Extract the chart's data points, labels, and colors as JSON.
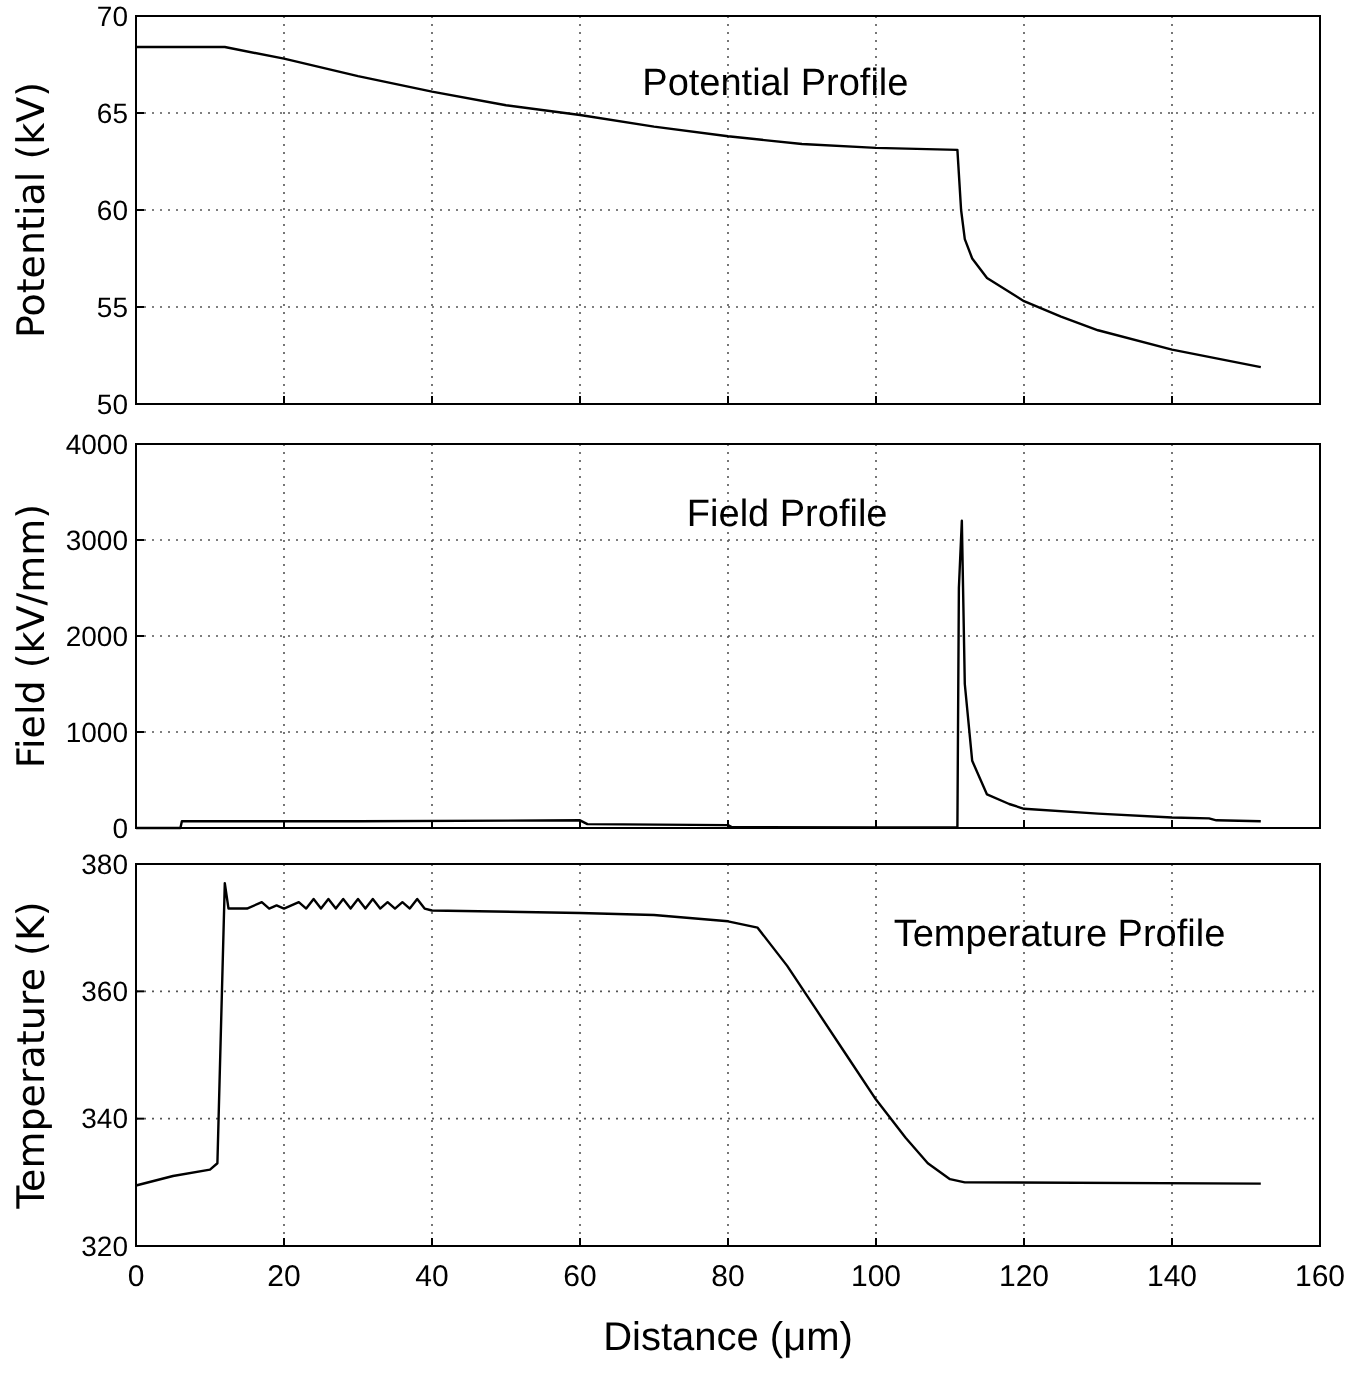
{
  "chart_data": [
    {
      "type": "line",
      "title": "Potential Profile",
      "ylabel": "Potential (kV)",
      "xlim": [
        0,
        160
      ],
      "xticks": [
        0,
        20,
        40,
        60,
        80,
        100,
        120,
        140,
        160
      ],
      "ylim": [
        50,
        70
      ],
      "yticks": [
        50,
        55,
        60,
        65,
        70
      ],
      "grid": true,
      "tick_labels": "y",
      "series": [
        {
          "color": "#000000",
          "x": [
            0,
            12,
            20,
            30,
            40,
            50,
            60,
            70,
            80,
            90,
            100,
            111,
            111.5,
            112,
            113,
            115,
            120,
            125,
            130,
            140,
            152
          ],
          "values": [
            68.4,
            68.4,
            67.8,
            66.9,
            66.1,
            65.4,
            64.9,
            64.3,
            63.8,
            63.4,
            63.2,
            63.1,
            60,
            58.5,
            57.5,
            56.5,
            55.3,
            54.5,
            53.8,
            52.8,
            51.9
          ]
        }
      ]
    },
    {
      "type": "line",
      "title": "Field Profile",
      "ylabel": "Field (kV/mm)",
      "xlim": [
        0,
        160
      ],
      "xticks": [
        0,
        20,
        40,
        60,
        80,
        100,
        120,
        140,
        160
      ],
      "ylim": [
        0,
        4000
      ],
      "yticks": [
        0,
        1000,
        2000,
        3000,
        4000
      ],
      "grid": true,
      "tick_labels": "y",
      "series": [
        {
          "color": "#000000",
          "x": [
            0,
            6,
            6.2,
            30,
            60,
            61,
            80,
            80.5,
            100,
            111,
            111.2,
            111.6,
            112,
            113,
            115,
            118,
            120,
            130,
            140,
            145,
            146,
            152
          ],
          "values": [
            0,
            0,
            70,
            70,
            80,
            40,
            30,
            10,
            5,
            5,
            2500,
            3200,
            1500,
            700,
            350,
            250,
            200,
            150,
            110,
            100,
            80,
            70
          ]
        }
      ]
    },
    {
      "type": "line",
      "title": "Temperature Profile",
      "ylabel": "Temperature (K)",
      "xlabel": "Distance (μm)",
      "xlim": [
        0,
        160
      ],
      "xticks": [
        0,
        20,
        40,
        60,
        80,
        100,
        120,
        140,
        160
      ],
      "ylim": [
        320,
        380
      ],
      "yticks": [
        320,
        340,
        360,
        380
      ],
      "grid": true,
      "series": [
        {
          "color": "#000000",
          "x": [
            0,
            5,
            10,
            11,
            12,
            12.5,
            15,
            17,
            18,
            19,
            20,
            22,
            23,
            24,
            25,
            26,
            27,
            28,
            29,
            30,
            31,
            32,
            33,
            34,
            35,
            36,
            37,
            38,
            39,
            40,
            60,
            70,
            80,
            84,
            88,
            92,
            96,
            100,
            104,
            107,
            110,
            112,
            152
          ],
          "values": [
            329.5,
            331,
            332,
            333,
            377,
            373,
            373,
            374,
            373,
            373.5,
            373,
            374,
            373,
            374.5,
            373,
            374.5,
            373,
            374.5,
            373,
            374.5,
            373,
            374.5,
            373,
            374,
            373,
            374,
            373,
            374.5,
            373,
            372.7,
            372.3,
            372,
            371,
            370,
            364,
            357,
            350,
            343,
            337,
            333,
            330.5,
            330,
            329.8
          ]
        }
      ]
    }
  ]
}
